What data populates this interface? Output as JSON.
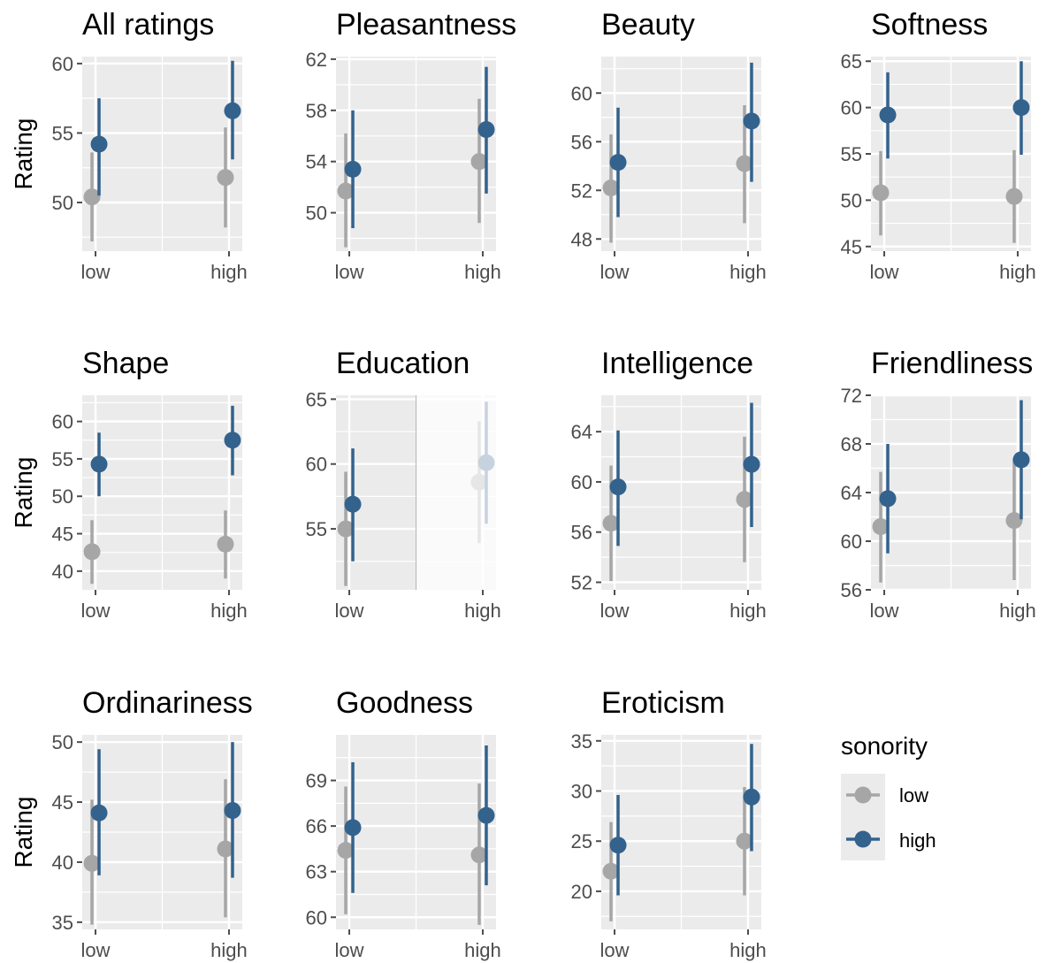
{
  "chart_data": {
    "type": "scatter",
    "subtype": "point-range facets",
    "categories": [
      "low",
      "high"
    ],
    "y_axis_label": "Rating",
    "legend": {
      "title": "sonority",
      "placement": "right",
      "entries": [
        {
          "label": "low",
          "color": "#a6a6a6"
        },
        {
          "label": "high",
          "color": "#33628d"
        }
      ]
    },
    "colors": {
      "low": "#a6a6a6",
      "high": "#33628d",
      "panel_bg": "#ebebeb",
      "grid": "#ffffff",
      "tick": "#4d4d4d"
    },
    "grid": true,
    "panels": [
      {
        "title": "All ratings",
        "ylim": [
          46.5,
          60.5
        ],
        "ticks": [
          50,
          55,
          60
        ],
        "tick_labels": [
          "50",
          "55",
          "60"
        ],
        "series": [
          {
            "name": "low",
            "points": [
              {
                "x": "low",
                "y": 50.4,
                "lo": 47.2,
                "hi": 53.6
              },
              {
                "x": "high",
                "y": 51.8,
                "lo": 48.2,
                "hi": 55.4
              }
            ]
          },
          {
            "name": "high",
            "points": [
              {
                "x": "low",
                "y": 54.2,
                "lo": 50.5,
                "hi": 57.5
              },
              {
                "x": "high",
                "y": 56.6,
                "lo": 53.1,
                "hi": 60.2
              }
            ]
          }
        ]
      },
      {
        "title": "Pleasantness",
        "ylim": [
          47,
          62.2
        ],
        "ticks": [
          50,
          54,
          58,
          62
        ],
        "tick_labels": [
          "50",
          "54",
          "58",
          "62"
        ],
        "series": [
          {
            "name": "low",
            "points": [
              {
                "x": "low",
                "y": 51.7,
                "lo": 47.3,
                "hi": 56.2
              },
              {
                "x": "high",
                "y": 54.0,
                "lo": 49.2,
                "hi": 58.9
              }
            ]
          },
          {
            "name": "high",
            "points": [
              {
                "x": "low",
                "y": 53.4,
                "lo": 48.8,
                "hi": 58.0
              },
              {
                "x": "high",
                "y": 56.5,
                "lo": 51.5,
                "hi": 61.4
              }
            ]
          }
        ]
      },
      {
        "title": "Beauty",
        "ylim": [
          47,
          63
        ],
        "ticks": [
          48,
          52,
          56,
          60
        ],
        "tick_labels": [
          "48",
          "52",
          "56",
          "60"
        ],
        "series": [
          {
            "name": "low",
            "points": [
              {
                "x": "low",
                "y": 52.2,
                "lo": 47.7,
                "hi": 56.6
              },
              {
                "x": "high",
                "y": 54.2,
                "lo": 49.3,
                "hi": 59.0
              }
            ]
          },
          {
            "name": "high",
            "points": [
              {
                "x": "low",
                "y": 54.3,
                "lo": 49.8,
                "hi": 58.8
              },
              {
                "x": "high",
                "y": 57.7,
                "lo": 52.7,
                "hi": 62.5
              }
            ]
          }
        ]
      },
      {
        "title": "Softness",
        "ylim": [
          44.5,
          65.5
        ],
        "ticks": [
          45,
          50,
          55,
          60,
          65
        ],
        "tick_labels": [
          "45",
          "50",
          "55",
          "60",
          "65"
        ],
        "series": [
          {
            "name": "low",
            "points": [
              {
                "x": "low",
                "y": 50.8,
                "lo": 46.2,
                "hi": 55.3
              },
              {
                "x": "high",
                "y": 50.4,
                "lo": 45.4,
                "hi": 55.4
              }
            ]
          },
          {
            "name": "high",
            "points": [
              {
                "x": "low",
                "y": 59.2,
                "lo": 54.5,
                "hi": 63.8
              },
              {
                "x": "high",
                "y": 60.0,
                "lo": 54.9,
                "hi": 65.0
              }
            ]
          }
        ]
      },
      {
        "title": "Shape",
        "ylim": [
          37.5,
          63.5
        ],
        "ticks": [
          40,
          45,
          50,
          55,
          60
        ],
        "tick_labels": [
          "40",
          "45",
          "50",
          "55",
          "60"
        ],
        "series": [
          {
            "name": "low",
            "points": [
              {
                "x": "low",
                "y": 42.6,
                "lo": 38.3,
                "hi": 46.8
              },
              {
                "x": "high",
                "y": 43.6,
                "lo": 39.0,
                "hi": 48.1
              }
            ]
          },
          {
            "name": "high",
            "points": [
              {
                "x": "low",
                "y": 54.3,
                "lo": 50.0,
                "hi": 58.5
              },
              {
                "x": "high",
                "y": 57.5,
                "lo": 52.8,
                "hi": 62.1
              }
            ]
          }
        ]
      },
      {
        "title": "Education",
        "ylim": [
          50.3,
          65.3
        ],
        "ticks": [
          55,
          60,
          65
        ],
        "tick_labels": [
          "55",
          "60",
          "65"
        ],
        "series": [
          {
            "name": "low",
            "points": [
              {
                "x": "low",
                "y": 55.0,
                "lo": 50.6,
                "hi": 59.4
              },
              {
                "x": "high",
                "y": 58.6,
                "lo": 53.9,
                "hi": 63.3
              }
            ]
          },
          {
            "name": "high",
            "points": [
              {
                "x": "low",
                "y": 56.9,
                "lo": 52.5,
                "hi": 61.2
              },
              {
                "x": "high",
                "y": 60.1,
                "lo": 55.4,
                "hi": 64.8
              }
            ]
          }
        ]
      },
      {
        "title": "Intelligence",
        "ylim": [
          51.4,
          66.9
        ],
        "ticks": [
          52,
          56,
          60,
          64
        ],
        "tick_labels": [
          "52",
          "56",
          "60",
          "64"
        ],
        "series": [
          {
            "name": "low",
            "points": [
              {
                "x": "low",
                "y": 56.7,
                "lo": 52.1,
                "hi": 61.3
              },
              {
                "x": "high",
                "y": 58.6,
                "lo": 53.6,
                "hi": 63.6
              }
            ]
          },
          {
            "name": "high",
            "points": [
              {
                "x": "low",
                "y": 59.6,
                "lo": 54.9,
                "hi": 64.1
              },
              {
                "x": "high",
                "y": 61.4,
                "lo": 56.4,
                "hi": 66.3
              }
            ]
          }
        ]
      },
      {
        "title": "Friendliness",
        "ylim": [
          56,
          72
        ],
        "ticks": [
          56,
          60,
          64,
          68,
          72
        ],
        "tick_labels": [
          "56",
          "60",
          "64",
          "68",
          "72"
        ],
        "series": [
          {
            "name": "low",
            "points": [
              {
                "x": "low",
                "y": 61.2,
                "lo": 56.6,
                "hi": 65.7
              },
              {
                "x": "high",
                "y": 61.7,
                "lo": 56.8,
                "hi": 66.8
              }
            ]
          },
          {
            "name": "high",
            "points": [
              {
                "x": "low",
                "y": 63.5,
                "lo": 59.0,
                "hi": 68.0
              },
              {
                "x": "high",
                "y": 66.7,
                "lo": 61.8,
                "hi": 71.6
              }
            ]
          }
        ]
      },
      {
        "title": "Ordinariness",
        "ylim": [
          34.4,
          50.6
        ],
        "ticks": [
          35,
          40,
          45,
          50
        ],
        "tick_labels": [
          "35",
          "40",
          "45",
          "50"
        ],
        "series": [
          {
            "name": "low",
            "points": [
              {
                "x": "low",
                "y": 39.9,
                "lo": 34.8,
                "hi": 45.2
              },
              {
                "x": "high",
                "y": 41.1,
                "lo": 35.4,
                "hi": 46.9
              }
            ]
          },
          {
            "name": "high",
            "points": [
              {
                "x": "low",
                "y": 44.1,
                "lo": 38.9,
                "hi": 49.4
              },
              {
                "x": "high",
                "y": 44.3,
                "lo": 38.7,
                "hi": 50.0
              }
            ]
          }
        ]
      },
      {
        "title": "Goodness",
        "ylim": [
          59.2,
          72.0
        ],
        "ticks": [
          60,
          63,
          66,
          69
        ],
        "tick_labels": [
          "60",
          "63",
          "66",
          "69"
        ],
        "series": [
          {
            "name": "low",
            "points": [
              {
                "x": "low",
                "y": 64.4,
                "lo": 60.2,
                "hi": 68.6
              },
              {
                "x": "high",
                "y": 64.1,
                "lo": 59.5,
                "hi": 68.8
              }
            ]
          },
          {
            "name": "high",
            "points": [
              {
                "x": "low",
                "y": 65.9,
                "lo": 61.6,
                "hi": 70.2
              },
              {
                "x": "high",
                "y": 66.7,
                "lo": 62.1,
                "hi": 71.3
              }
            ]
          }
        ]
      },
      {
        "title": "Eroticism",
        "ylim": [
          16.2,
          35.6
        ],
        "ticks": [
          20,
          25,
          30,
          35
        ],
        "tick_labels": [
          "20",
          "25",
          "30",
          "35"
        ],
        "series": [
          {
            "name": "low",
            "points": [
              {
                "x": "low",
                "y": 22.0,
                "lo": 17.0,
                "hi": 26.9
              },
              {
                "x": "high",
                "y": 25.0,
                "lo": 19.6,
                "hi": 30.4
              }
            ]
          },
          {
            "name": "high",
            "points": [
              {
                "x": "low",
                "y": 24.6,
                "lo": 19.6,
                "hi": 29.6
              },
              {
                "x": "high",
                "y": 29.4,
                "lo": 24.0,
                "hi": 34.7
              }
            ]
          }
        ]
      }
    ]
  }
}
